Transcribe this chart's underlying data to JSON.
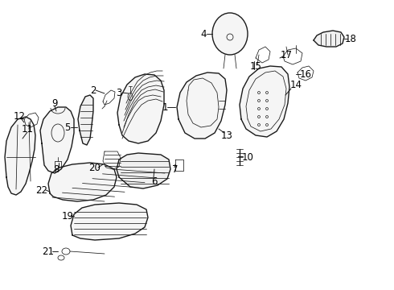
{
  "background_color": "#ffffff",
  "line_color": "#1a1a1a",
  "lw_main": 1.0,
  "lw_thin": 0.55,
  "label_fontsize": 8.5,
  "fig_width": 4.9,
  "fig_height": 3.6,
  "dpi": 100
}
